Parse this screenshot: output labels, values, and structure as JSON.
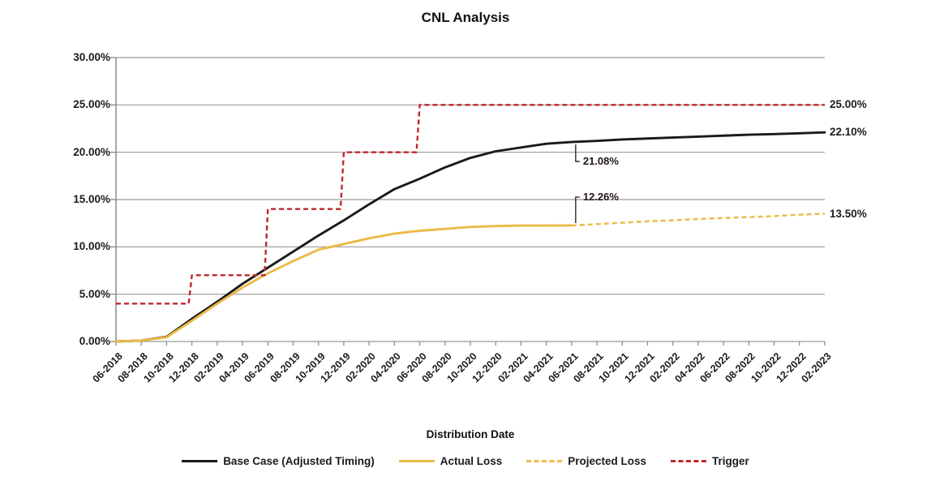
{
  "chart_data": {
    "type": "line",
    "title": "CNL Analysis",
    "xlabel": "Distribution Date",
    "ylabel": "",
    "ylim": [
      0,
      30
    ],
    "ytick_labels": [
      "30.00%",
      "25.00%",
      "20.00%",
      "15.00%",
      "10.00%",
      "5.00%",
      "0.00%"
    ],
    "grid": true,
    "legend_position": "bottom",
    "grid_color": "#9a9a9a",
    "axis_color": "#848484",
    "annotation_color": "#1a1a1a",
    "categories": [
      "06-2018",
      "08-2018",
      "10-2018",
      "12-2018",
      "02-2019",
      "04-2019",
      "06-2019",
      "08-2019",
      "10-2019",
      "12-2019",
      "02-2020",
      "04-2020",
      "06-2020",
      "08-2020",
      "10-2020",
      "12-2020",
      "02-2021",
      "04-2021",
      "06-2021",
      "08-2021",
      "10-2021",
      "12-2021",
      "02-2022",
      "04-2022",
      "06-2022",
      "08-2022",
      "10-2022",
      "12-2022",
      "02-2023"
    ],
    "series": [
      {
        "name": "Base Case (Adjusted Timing)",
        "color": "#1a1a1a",
        "line_style": "solid",
        "step": false,
        "start": 0,
        "values": [
          0,
          0.1,
          0.5,
          2.4,
          4.2,
          6.1,
          7.8,
          9.5,
          11.2,
          12.8,
          14.5,
          16.1,
          17.2,
          18.4,
          19.4,
          20.1,
          20.5,
          20.9,
          21.08,
          21.2,
          21.35,
          21.45,
          21.55,
          21.65,
          21.75,
          21.85,
          21.92,
          22.0,
          22.1
        ]
      },
      {
        "name": "Actual Loss",
        "color": "#ecba45",
        "line_style": "solid",
        "step": false,
        "start": 0,
        "values": [
          0,
          0.1,
          0.45,
          2.2,
          4.0,
          5.7,
          7.2,
          8.5,
          9.7,
          10.3,
          10.9,
          11.4,
          11.7,
          11.9,
          12.1,
          12.2,
          12.25,
          12.25,
          12.26
        ]
      },
      {
        "name": "Projected Loss",
        "color": "#ecba45",
        "line_style": "dashed",
        "step": false,
        "start": 18,
        "values": [
          12.26,
          12.4,
          12.55,
          12.7,
          12.8,
          12.95,
          13.05,
          13.15,
          13.25,
          13.4,
          13.5
        ]
      },
      {
        "name": "Trigger",
        "color": "#c1272d",
        "line_style": "dashed",
        "step": true,
        "start": 0,
        "values": [
          4,
          4,
          4,
          7,
          7,
          7,
          14,
          14,
          14,
          20,
          20,
          20,
          25,
          25,
          25,
          25,
          25,
          25,
          25,
          25,
          25,
          25,
          25,
          25,
          25,
          25,
          25,
          25,
          25
        ]
      }
    ],
    "annotations": [
      {
        "label": "21.08%",
        "category": "06-2021",
        "series": "Base Case (Adjusted Timing)",
        "value": 21.08,
        "placement": "below"
      },
      {
        "label": "12.26%",
        "category": "06-2021",
        "series": "Actual Loss",
        "value": 12.26,
        "placement": "above"
      }
    ],
    "end_labels": [
      {
        "label": "25.00%",
        "series": "Trigger",
        "value": 25.0
      },
      {
        "label": "22.10%",
        "series": "Base Case (Adjusted Timing)",
        "value": 22.1
      },
      {
        "label": "13.50%",
        "series": "Projected Loss",
        "value": 13.5
      }
    ]
  }
}
